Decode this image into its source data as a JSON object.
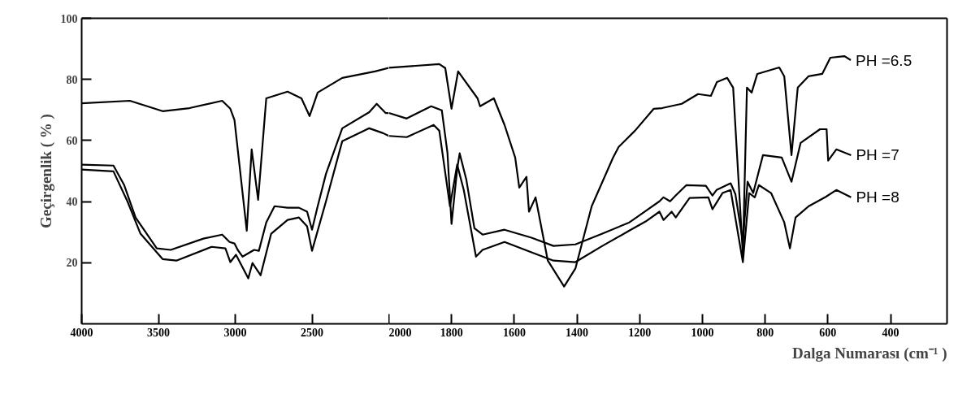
{
  "chart_data": [
    {
      "type": "line",
      "ylabel": "Geçirgenlik ( % )",
      "xlim": [
        4000,
        2000
      ],
      "ylim": [
        0,
        100
      ],
      "xticks": [
        4000,
        3500,
        3000,
        2500
      ],
      "yticks": [
        20,
        40,
        60,
        80,
        100
      ],
      "grid": false,
      "marker": "none",
      "line_style": "solid",
      "series": [
        {
          "color": "#000000",
          "x": [
            4000,
            3686,
            3473,
            3298,
            3085,
            3032,
            3005,
            2925,
            2893,
            2851,
            2798,
            2659,
            2569,
            2516,
            2463,
            2303,
            2090,
            2000
          ],
          "values": [
            72.2,
            73,
            69.6,
            70.6,
            73,
            70.4,
            66.7,
            30.5,
            57.1,
            40.6,
            73.8,
            76,
            73.8,
            68,
            75.7,
            80.5,
            82.6,
            83.8
          ]
        },
        {
          "color": "#000000",
          "x": [
            4000,
            3793,
            3723,
            3649,
            3511,
            3420,
            3207,
            3085,
            3037,
            3005,
            2984,
            2952,
            2877,
            2846,
            2798,
            2744,
            2659,
            2585,
            2532,
            2500,
            2463,
            2409,
            2303,
            2127,
            2079,
            2021,
            2000
          ],
          "values": [
            52.1,
            51.8,
            45.4,
            34.8,
            24.7,
            24.2,
            27.9,
            29.2,
            26.8,
            26.3,
            24.2,
            22,
            24.2,
            23.9,
            33.2,
            38.5,
            38,
            38,
            36.7,
            30.8,
            38.5,
            49.1,
            64,
            69.3,
            72,
            69,
            69
          ]
        },
        {
          "color": "#000000",
          "x": [
            4000,
            3793,
            3702,
            3617,
            3473,
            3383,
            3154,
            3064,
            3032,
            2995,
            2915,
            2888,
            2835,
            2766,
            2659,
            2585,
            2532,
            2500,
            2409,
            2303,
            2127,
            2037,
            2000
          ],
          "values": [
            50.5,
            49.9,
            40.1,
            29.5,
            21.2,
            20.7,
            25.2,
            24.7,
            20.2,
            22.6,
            14.9,
            19.9,
            15.9,
            29.5,
            34,
            34.8,
            31.9,
            23.9,
            40.1,
            59.8,
            64,
            62.4,
            61.5
          ]
        }
      ]
    },
    {
      "type": "line",
      "xlabel": "Dalga Numarası (cm⁻¹ )",
      "xlim": [
        2000,
        220
      ],
      "ylim": [
        0,
        100
      ],
      "xticks": [
        2000,
        1800,
        1600,
        1400,
        1200,
        1000,
        800,
        600,
        400
      ],
      "tick_labels": "x",
      "grid": false,
      "marker": "none",
      "line_style": "solid",
      "series": [
        {
          "name": "PH =6.5",
          "color": "#000000",
          "x": [
            2000,
            1839,
            1820,
            1800,
            1779,
            1717,
            1709,
            1665,
            1631,
            1597,
            1584,
            1561,
            1553,
            1532,
            1493,
            1441,
            1405,
            1353,
            1285,
            1267,
            1215,
            1155,
            1129,
            1066,
            1014,
            973,
            954,
            921,
            902,
            871,
            858,
            843,
            825,
            755,
            739,
            716,
            696,
            662,
            618,
            592,
            547,
            527
          ],
          "values": [
            83.8,
            85,
            83.7,
            70.4,
            82.6,
            73.8,
            71.2,
            73.8,
            65.1,
            54.4,
            44.6,
            48.1,
            36.7,
            41.4,
            20.7,
            12.2,
            18.1,
            38.5,
            54.4,
            57.9,
            63.2,
            70.4,
            70.6,
            72,
            75.2,
            74.6,
            79.1,
            80.5,
            77.3,
            22.6,
            77.3,
            75.7,
            81.8,
            83.9,
            81,
            55.2,
            77.3,
            81,
            81.8,
            87.1,
            87.6,
            86.3
          ]
        },
        {
          "name": "PH =7",
          "color": "#000000",
          "x": [
            2000,
            1943,
            1865,
            1831,
            1813,
            1800,
            1782,
            1774,
            1753,
            1727,
            1701,
            1631,
            1545,
            1475,
            1405,
            1319,
            1233,
            1215,
            1137,
            1124,
            1103,
            1085,
            1051,
            989,
            968,
            955,
            910,
            895,
            871,
            856,
            838,
            807,
            747,
            716,
            687,
            625,
            604,
            599,
            573,
            526
          ],
          "values": [
            69,
            67.2,
            71.2,
            69.9,
            56,
            32.7,
            50.7,
            55.8,
            47.3,
            31.3,
            29.2,
            30.8,
            28.2,
            25.5,
            26,
            29.5,
            33.2,
            34.5,
            40.1,
            41.4,
            40.1,
            42,
            45.4,
            45.2,
            42,
            43.8,
            46,
            42.5,
            26.8,
            46.5,
            42.8,
            55.2,
            54.4,
            46.5,
            59.2,
            63.7,
            63.7,
            53.4,
            57.1,
            55.2
          ]
        },
        {
          "name": "PH =8",
          "color": "#000000",
          "x": [
            2000,
            1943,
            1857,
            1839,
            1805,
            1782,
            1761,
            1722,
            1701,
            1631,
            1545,
            1475,
            1405,
            1319,
            1233,
            1181,
            1137,
            1124,
            1098,
            1085,
            1041,
            981,
            968,
            936,
            910,
            871,
            851,
            833,
            820,
            781,
            739,
            721,
            703,
            661,
            609,
            573,
            526
          ],
          "values": [
            61.5,
            61.1,
            65.1,
            63.2,
            38.5,
            52.1,
            43.8,
            22,
            24.2,
            26.8,
            23.4,
            20.7,
            20.2,
            25.5,
            30.5,
            33.5,
            36.7,
            34,
            36.7,
            34.8,
            41.2,
            41.4,
            37.5,
            42.8,
            43.8,
            20.2,
            42.8,
            41.4,
            45.4,
            42.8,
            33.2,
            24.7,
            34.8,
            38.5,
            41.4,
            43.8,
            41.4
          ]
        }
      ]
    }
  ]
}
